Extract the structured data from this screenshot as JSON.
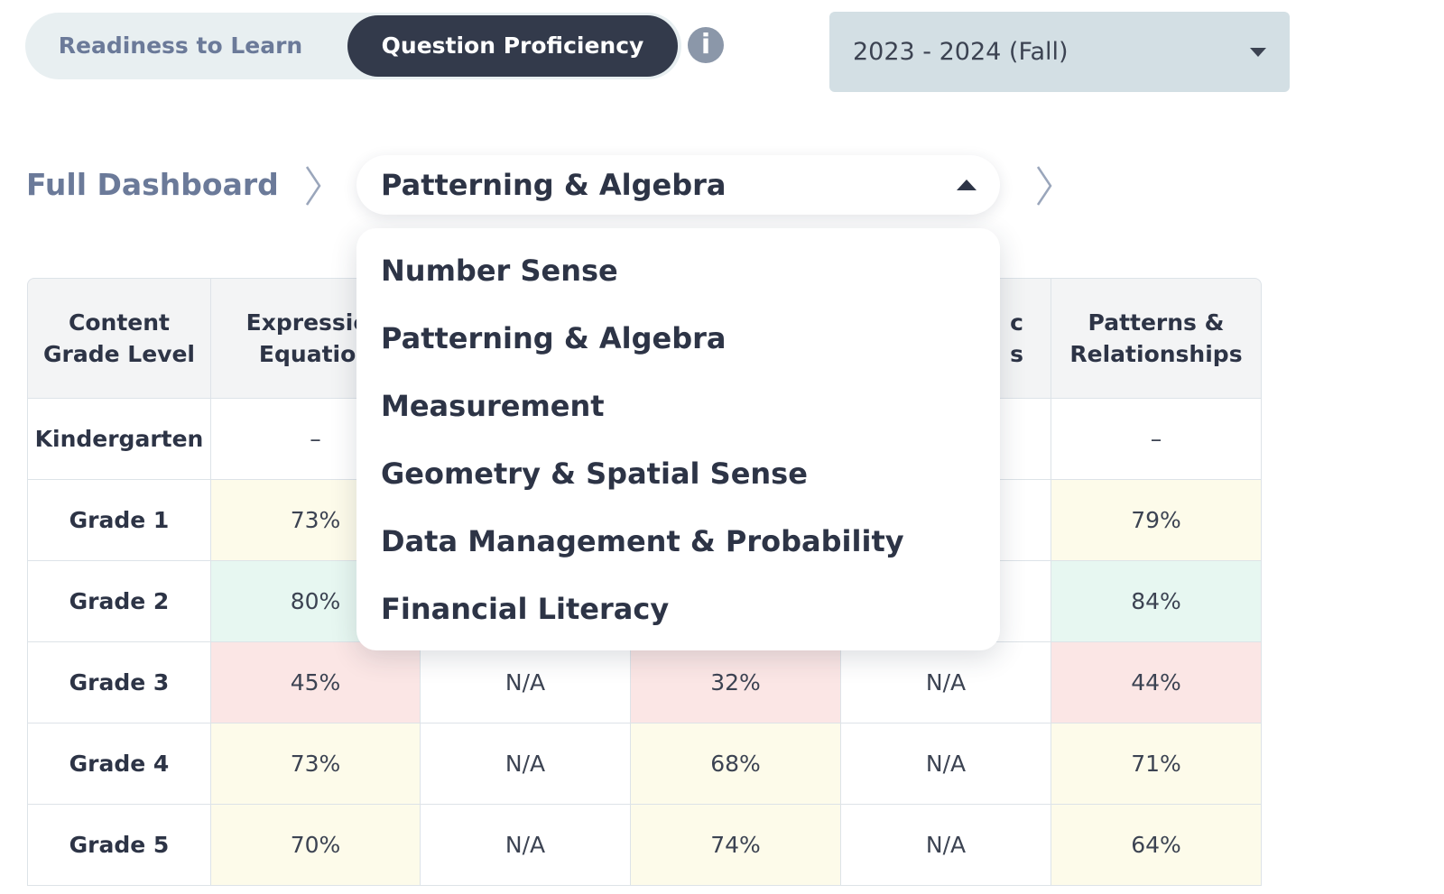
{
  "tabs": {
    "items": [
      "Readiness to Learn",
      "Question Proficiency"
    ],
    "active": 1
  },
  "term_select": {
    "value": "2023 - 2024 (Fall)"
  },
  "breadcrumb": {
    "root": "Full Dashboard",
    "current": "Patterning & Algebra"
  },
  "dropdown": {
    "options": [
      "Number Sense",
      "Patterning & Algebra",
      "Measurement",
      "Geometry & Spatial Sense",
      "Data Management & Probability",
      "Financial Literacy"
    ]
  },
  "table": {
    "header": [
      [
        "Content",
        "Grade Level"
      ],
      [
        "Expression",
        "Equation"
      ],
      null,
      null,
      [
        "c",
        "s"
      ],
      [
        "Patterns &",
        "Relationships"
      ]
    ],
    "rows": [
      [
        "Kindergarten",
        "–",
        null,
        null,
        null,
        "–"
      ],
      [
        "Grade 1",
        "73%",
        null,
        null,
        null,
        "79%"
      ],
      [
        "Grade 2",
        "80%",
        null,
        null,
        null,
        "84%"
      ],
      [
        "Grade 3",
        "45%",
        "N/A",
        "32%",
        "N/A",
        "44%"
      ],
      [
        "Grade 4",
        "73%",
        "N/A",
        "68%",
        "N/A",
        "71%"
      ],
      [
        "Grade 5",
        "70%",
        "N/A",
        "74%",
        "N/A",
        "64%"
      ]
    ],
    "cell_colors": [
      [
        "#ffffff",
        "#ffffff",
        "#ffffff",
        "#ffffff",
        "#ffffff",
        "#ffffff"
      ],
      [
        "#ffffff",
        "#fdfbea",
        "#ffffff",
        "#ffffff",
        "#ffffff",
        "#fdfbea"
      ],
      [
        "#ffffff",
        "#e7f7f1",
        "#ffffff",
        "#ffffff",
        "#ffffff",
        "#e7f7f1"
      ],
      [
        "#ffffff",
        "#fbe6e5",
        "#ffffff",
        "#fbe6e5",
        "#ffffff",
        "#fbe6e5"
      ],
      [
        "#ffffff",
        "#fdfbea",
        "#ffffff",
        "#fdfbea",
        "#ffffff",
        "#fdfbea"
      ],
      [
        "#ffffff",
        "#fdfbea",
        "#ffffff",
        "#fdfbea",
        "#ffffff",
        "#fdfbea"
      ]
    ]
  }
}
